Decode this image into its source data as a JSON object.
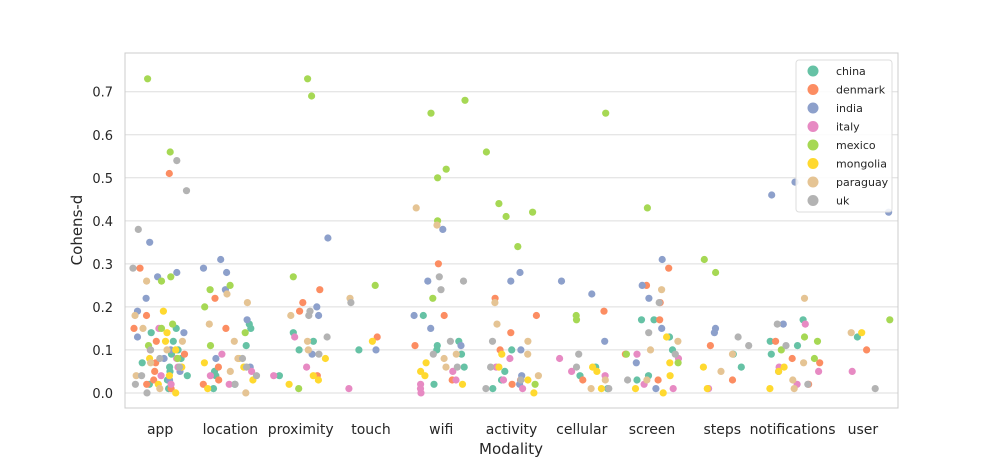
{
  "chart_data": {
    "type": "scatter",
    "subtype": "strip",
    "xlabel": "Modality",
    "ylabel": "Cohens-d",
    "categories": [
      "app",
      "location",
      "proximity",
      "touch",
      "wifi",
      "activity",
      "cellular",
      "screen",
      "steps",
      "notifications",
      "user"
    ],
    "ylim": [
      -0.035,
      0.79
    ],
    "yticks": [
      "0.0",
      "0.1",
      "0.2",
      "0.3",
      "0.4",
      "0.5",
      "0.6",
      "0.7"
    ],
    "grid": "horizontal",
    "legend_position": "top-right",
    "series": [
      {
        "name": "china",
        "color": "#66c2a5",
        "values": [
          [
            0,
            [
              0.01,
              0.02,
              0.03,
              0.04,
              0.05,
              0.06,
              0.07,
              0.08,
              0.09,
              0.1,
              0.12,
              0.14,
              0.15
            ]
          ],
          [
            1,
            [
              0.01,
              0.02,
              0.04,
              0.05,
              0.11,
              0.15,
              0.16
            ]
          ],
          [
            2,
            [
              0.04,
              0.1,
              0.12,
              0.14
            ]
          ],
          [
            3,
            [
              0.1
            ]
          ],
          [
            4,
            [
              0.02,
              0.06,
              0.09,
              0.1,
              0.11,
              0.12,
              0.18
            ]
          ],
          [
            5,
            [
              0.01,
              0.03,
              0.05,
              0.1
            ]
          ],
          [
            6,
            [
              0.01,
              0.04,
              0.06
            ]
          ],
          [
            7,
            [
              0.03,
              0.04,
              0.1,
              0.13,
              0.17,
              0.17
            ]
          ],
          [
            8,
            [
              0.06,
              0.09
            ]
          ],
          [
            9,
            [
              0.09,
              0.11,
              0.12,
              0.17
            ]
          ],
          [
            10,
            [
              0.13
            ]
          ]
        ]
      },
      {
        "name": "denmark",
        "color": "#fc8d62",
        "values": [
          [
            0,
            [
              0.01,
              0.02,
              0.03,
              0.05,
              0.07,
              0.09,
              0.12,
              0.15,
              0.18,
              0.29,
              0.51
            ]
          ],
          [
            1,
            [
              0.02,
              0.03,
              0.06,
              0.15,
              0.22
            ]
          ],
          [
            2,
            [
              0.04,
              0.19,
              0.21,
              0.24
            ]
          ],
          [
            3,
            [
              0.13
            ]
          ],
          [
            4,
            [
              0.03,
              0.11,
              0.18,
              0.3
            ]
          ],
          [
            5,
            [
              0.02,
              0.03,
              0.1,
              0.14,
              0.18,
              0.22
            ]
          ],
          [
            6,
            [
              0.03,
              0.19
            ]
          ],
          [
            7,
            [
              0.03,
              0.09,
              0.17,
              0.21,
              0.25,
              0.29
            ]
          ],
          [
            8,
            [
              0.03,
              0.11
            ]
          ],
          [
            9,
            [
              0.02,
              0.07,
              0.08,
              0.12
            ]
          ],
          [
            10,
            [
              0.1
            ]
          ]
        ]
      },
      {
        "name": "india",
        "color": "#8da0cb",
        "values": [
          [
            0,
            [
              0.03,
              0.05,
              0.08,
              0.1,
              0.13,
              0.14,
              0.19,
              0.22,
              0.27,
              0.28,
              0.35
            ]
          ],
          [
            1,
            [
              0.06,
              0.08,
              0.17,
              0.24,
              0.28,
              0.29,
              0.31
            ]
          ],
          [
            2,
            [
              0.09,
              0.18,
              0.2,
              0.36
            ]
          ],
          [
            3,
            [
              0.1
            ]
          ],
          [
            4,
            [
              0.11,
              0.15,
              0.18,
              0.26,
              0.38
            ]
          ],
          [
            5,
            [
              0.02,
              0.04,
              0.1,
              0.26,
              0.28
            ]
          ],
          [
            6,
            [
              0.12,
              0.23,
              0.26
            ]
          ],
          [
            7,
            [
              0.01,
              0.07,
              0.15,
              0.22,
              0.25,
              0.31
            ]
          ],
          [
            8,
            [
              0.14,
              0.15
            ]
          ],
          [
            9,
            [
              0.05,
              0.16,
              0.46,
              0.49
            ]
          ],
          [
            10,
            [
              0.42
            ]
          ]
        ]
      },
      {
        "name": "italy",
        "color": "#e78ac3",
        "values": [
          [
            0,
            [
              0.02,
              0.04,
              0.06,
              0.08,
              0.1,
              0.15
            ]
          ],
          [
            1,
            [
              0.02,
              0.04,
              0.05,
              0.09
            ]
          ],
          [
            2,
            [
              0.04,
              0.06,
              0.13
            ]
          ],
          [
            3,
            [
              0.01
            ]
          ],
          [
            4,
            [
              0.0,
              0.01,
              0.02,
              0.03,
              0.05
            ]
          ],
          [
            5,
            [
              0.01,
              0.03,
              0.06,
              0.08
            ]
          ],
          [
            6,
            [
              0.04,
              0.05,
              0.08
            ]
          ],
          [
            7,
            [
              0.01,
              0.02,
              0.08,
              0.09
            ]
          ],
          [
            8,
            [
              0.01
            ]
          ],
          [
            9,
            [
              0.02,
              0.05,
              0.06,
              0.16
            ]
          ],
          [
            10,
            [
              0.05
            ]
          ]
        ]
      },
      {
        "name": "mexico",
        "color": "#a6d854",
        "values": [
          [
            0,
            [
              0.08,
              0.11,
              0.15,
              0.16,
              0.26,
              0.27,
              0.56,
              0.73
            ]
          ],
          [
            1,
            [
              0.11,
              0.14,
              0.2,
              0.24,
              0.25
            ]
          ],
          [
            2,
            [
              0.01,
              0.27,
              0.69,
              0.73
            ]
          ],
          [
            3,
            [
              0.25
            ]
          ],
          [
            4,
            [
              0.22,
              0.4,
              0.5,
              0.52,
              0.65,
              0.68
            ]
          ],
          [
            5,
            [
              0.02,
              0.34,
              0.41,
              0.42,
              0.44,
              0.56
            ]
          ],
          [
            6,
            [
              0.17,
              0.18,
              0.65
            ]
          ],
          [
            7,
            [
              0.07,
              0.09,
              0.43
            ]
          ],
          [
            8,
            [
              0.28,
              0.31
            ]
          ],
          [
            9,
            [
              0.08,
              0.1,
              0.12,
              0.13
            ]
          ],
          [
            10,
            [
              0.17
            ]
          ]
        ]
      },
      {
        "name": "mongolia",
        "color": "#ffd92f",
        "values": [
          [
            0,
            [
              0.0,
              0.02,
              0.04,
              0.06,
              0.08,
              0.1,
              0.12,
              0.14,
              0.19
            ]
          ],
          [
            1,
            [
              0.01,
              0.03,
              0.06,
              0.07,
              0.08
            ]
          ],
          [
            2,
            [
              0.02,
              0.03,
              0.04,
              0.08
            ]
          ],
          [
            3,
            [
              0.12
            ]
          ],
          [
            4,
            [
              0.02,
              0.04,
              0.05,
              0.07
            ]
          ],
          [
            5,
            [
              0.0,
              0.03,
              0.06,
              0.09
            ]
          ],
          [
            6,
            [
              0.01,
              0.05,
              0.06
            ]
          ],
          [
            7,
            [
              0.0,
              0.01,
              0.04,
              0.07,
              0.13
            ]
          ],
          [
            8,
            [
              0.01,
              0.06
            ]
          ],
          [
            9,
            [
              0.01,
              0.05,
              0.06
            ]
          ],
          [
            10,
            [
              0.14
            ]
          ]
        ]
      },
      {
        "name": "paraguay",
        "color": "#e5c494",
        "values": [
          [
            0,
            [
              0.01,
              0.04,
              0.07,
              0.1,
              0.12,
              0.15,
              0.18,
              0.26
            ]
          ],
          [
            1,
            [
              0.0,
              0.05,
              0.08,
              0.12,
              0.16,
              0.21,
              0.23
            ]
          ],
          [
            2,
            [
              0.1,
              0.12,
              0.18
            ]
          ],
          [
            3,
            [
              0.22
            ]
          ],
          [
            4,
            [
              0.06,
              0.08,
              0.09,
              0.39,
              0.43
            ]
          ],
          [
            5,
            [
              0.04,
              0.09,
              0.12,
              0.16,
              0.21
            ]
          ],
          [
            6,
            [
              0.01,
              0.03
            ]
          ],
          [
            7,
            [
              0.03,
              0.1,
              0.12,
              0.24
            ]
          ],
          [
            8,
            [
              0.05,
              0.09
            ]
          ],
          [
            9,
            [
              0.01,
              0.03,
              0.07,
              0.22
            ]
          ],
          [
            10,
            [
              0.14
            ]
          ]
        ]
      },
      {
        "name": "uk",
        "color": "#b3b3b3",
        "values": [
          [
            0,
            [
              0.0,
              0.02,
              0.04,
              0.06,
              0.08,
              0.1,
              0.29,
              0.38,
              0.47,
              0.54
            ]
          ],
          [
            1,
            [
              0.02,
              0.04,
              0.06,
              0.08
            ]
          ],
          [
            2,
            [
              0.09,
              0.13,
              0.18,
              0.19
            ]
          ],
          [
            3,
            [
              0.21
            ]
          ],
          [
            4,
            [
              0.06,
              0.09,
              0.12,
              0.24,
              0.26,
              0.27
            ]
          ],
          [
            5,
            [
              0.01,
              0.03,
              0.06,
              0.12
            ]
          ],
          [
            6,
            [
              0.01,
              0.06,
              0.09
            ]
          ],
          [
            7,
            [
              0.03,
              0.09,
              0.14,
              0.21
            ]
          ],
          [
            8,
            [
              0.11,
              0.13
            ]
          ],
          [
            9,
            [
              0.02,
              0.11,
              0.16
            ]
          ],
          [
            10,
            [
              0.01
            ]
          ]
        ]
      }
    ]
  }
}
